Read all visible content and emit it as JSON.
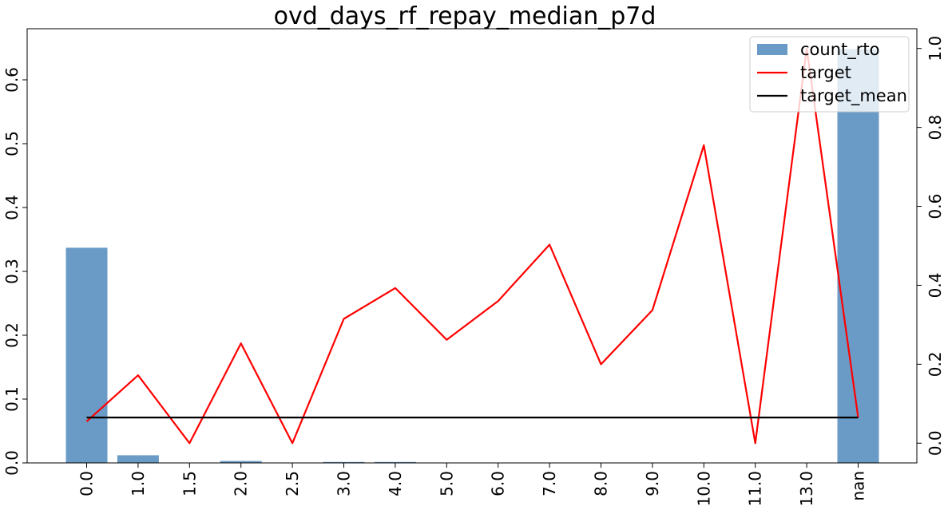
{
  "chart_data": {
    "type": "bar",
    "title": "ovd_days_rf_repay_median_p7d",
    "xlabel": "",
    "ylabel": "",
    "categories": [
      "0.0",
      "1.0",
      "1.5",
      "2.0",
      "2.5",
      "3.0",
      "4.0",
      "5.0",
      "6.0",
      "7.0",
      "8.0",
      "9.0",
      "10.0",
      "11.0",
      "13.0",
      "nan"
    ],
    "series": [
      {
        "name": "count_rto",
        "type": "bar",
        "axis": "left",
        "color": "#6a9bc6",
        "values": [
          0.337,
          0.012,
          0.0005,
          0.003,
          0.0005,
          0.0015,
          0.0015,
          0.0005,
          0.0005,
          0.0005,
          0.0005,
          0.0005,
          0.0005,
          0.0005,
          0.0005,
          0.648
        ]
      },
      {
        "name": "target",
        "type": "line",
        "axis": "right",
        "color": "#ff0000",
        "values": [
          0.055,
          0.172,
          0.0,
          0.253,
          0.0,
          0.315,
          0.393,
          0.262,
          0.36,
          0.503,
          0.2,
          0.337,
          0.755,
          0.0,
          1.0,
          0.065
        ]
      },
      {
        "name": "target_mean",
        "type": "line",
        "axis": "right",
        "color": "#000000",
        "values": [
          0.065,
          0.065,
          0.065,
          0.065,
          0.065,
          0.065,
          0.065,
          0.065,
          0.065,
          0.065,
          0.065,
          0.065,
          0.065,
          0.065,
          0.065,
          0.065
        ]
      }
    ],
    "y_left": {
      "ylim": [
        0,
        0.68
      ],
      "ticks": [
        "0.0",
        "0.1",
        "0.2",
        "0.3",
        "0.4",
        "0.5",
        "0.6"
      ]
    },
    "y_right": {
      "ylim": [
        -0.05,
        1.05
      ],
      "ticks": [
        "0.0",
        "0.2",
        "0.4",
        "0.6",
        "0.8",
        "1.0"
      ]
    },
    "grid": false,
    "legend_position": "upper right"
  }
}
